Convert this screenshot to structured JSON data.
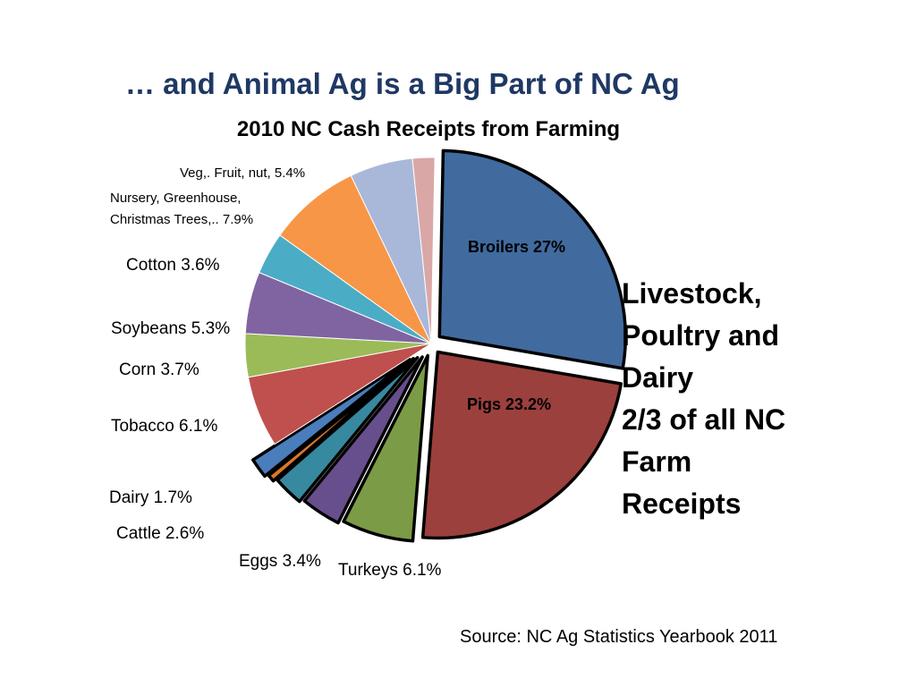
{
  "header": {
    "title": "… and Animal Ag is a Big Part of NC Ag"
  },
  "chart_data": {
    "type": "pie",
    "title": "2010 NC Cash Receipts from Farming",
    "exploded_group": "Livestock, Poultry and Dairy",
    "slices": [
      {
        "id": "broilers",
        "label": "Broilers 27%",
        "name": "Broilers",
        "value": 27.0,
        "color": "#416a9f",
        "group": "livestock",
        "label_inside": true
      },
      {
        "id": "pigs",
        "label": "Pigs 23.2%",
        "name": "Pigs",
        "value": 23.2,
        "color": "#9b403d",
        "group": "livestock",
        "label_inside": true
      },
      {
        "id": "turkeys",
        "label": "Turkeys 6.1%",
        "name": "Turkeys",
        "value": 6.1,
        "color": "#7b9b46",
        "group": "livestock"
      },
      {
        "id": "eggs",
        "label": "Eggs 3.4%",
        "name": "Eggs",
        "value": 3.4,
        "color": "#664f8c",
        "group": "livestock"
      },
      {
        "id": "cattle",
        "label": "Cattle 2.6%",
        "name": "Cattle",
        "value": 2.6,
        "color": "#36899f",
        "group": "livestock"
      },
      {
        "id": "dairy-other",
        "label": "",
        "name": "",
        "value": 0.6,
        "color": "#d9782c",
        "group": "livestock"
      },
      {
        "id": "dairy",
        "label": "Dairy 1.7%",
        "name": "Dairy",
        "value": 1.7,
        "color": "#4a7dbb",
        "group": "livestock"
      },
      {
        "id": "tobacco",
        "label": "Tobacco 6.1%",
        "name": "Tobacco",
        "value": 6.1,
        "color": "#c0504d",
        "group": "crops"
      },
      {
        "id": "corn",
        "label": "Corn 3.7%",
        "name": "Corn",
        "value": 3.7,
        "color": "#9bbb59",
        "group": "crops"
      },
      {
        "id": "soybeans",
        "label": "Soybeans 5.3%",
        "name": "Soybeans",
        "value": 5.3,
        "color": "#8064a2",
        "group": "crops"
      },
      {
        "id": "cotton",
        "label": "Cotton 3.6%",
        "name": "Cotton",
        "value": 3.6,
        "color": "#4bacc6",
        "group": "crops"
      },
      {
        "id": "nursery",
        "label": "Nursery, Greenhouse, Christmas Trees,.. 7.9%",
        "label_line1": "Nursery, Greenhouse,",
        "label_line2": "Christmas Trees,.. 7.9%",
        "name": "Nursery, Greenhouse, Christmas Trees",
        "value": 7.9,
        "color": "#f79646",
        "group": "crops"
      },
      {
        "id": "veg",
        "label": "Veg,. Fruit, nut, 5.4%",
        "name": "Veg, Fruit, nut",
        "value": 5.4,
        "color": "#a9b8d9",
        "group": "crops"
      },
      {
        "id": "other",
        "label": "",
        "name": "",
        "value": 1.9,
        "color": "#d9a7a6",
        "group": "crops"
      }
    ]
  },
  "callout": {
    "lines": [
      "Livestock,",
      "Poultry and",
      "Dairy",
      "2/3 of all NC",
      "Farm",
      "Receipts"
    ]
  },
  "source": "Source: NC Ag Statistics Yearbook 2011"
}
